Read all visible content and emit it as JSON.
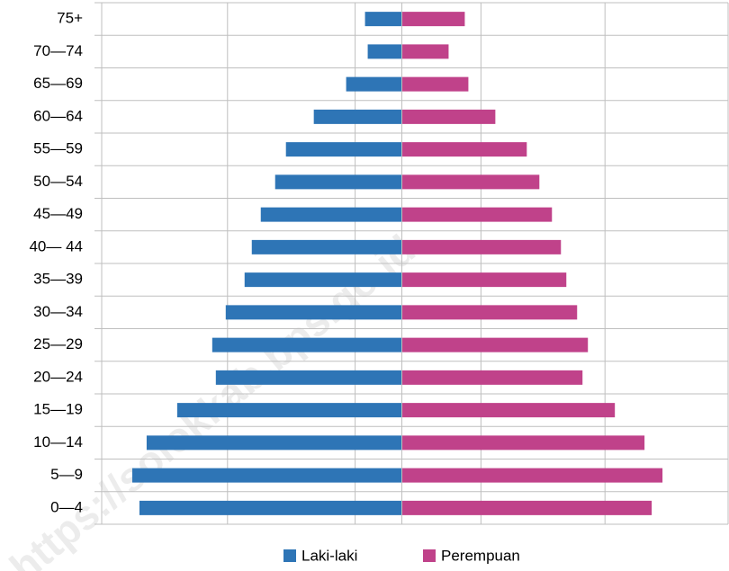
{
  "chart_data": {
    "type": "pyramid",
    "categories": [
      "75+",
      "70—74",
      "65—69",
      "60—64",
      "55—59",
      "50—54",
      "45—49",
      "40— 44",
      "35—39",
      "30—34",
      "25—29",
      "20—24",
      "15—19",
      "10—14",
      "5—9",
      "0—4"
    ],
    "series": [
      {
        "name": "Laki-laki",
        "color": "#2e75b6",
        "values": [
          -41,
          -38,
          -62,
          -98,
          -129,
          -141,
          -157,
          -167,
          -175,
          -196,
          -211,
          -207,
          -250,
          -284,
          -300,
          -292
        ]
      },
      {
        "name": "Perempuan",
        "color": "#c0428a",
        "values": [
          70,
          52,
          74,
          104,
          139,
          153,
          167,
          177,
          183,
          195,
          207,
          201,
          237,
          270,
          290,
          278
        ]
      }
    ],
    "xlim": [
      -334,
      363
    ],
    "xticks": [
      -194,
      -52,
      88,
      226
    ],
    "grid": true,
    "legend": "bottom",
    "watermark": "https://solokkab.bps.go.id"
  }
}
